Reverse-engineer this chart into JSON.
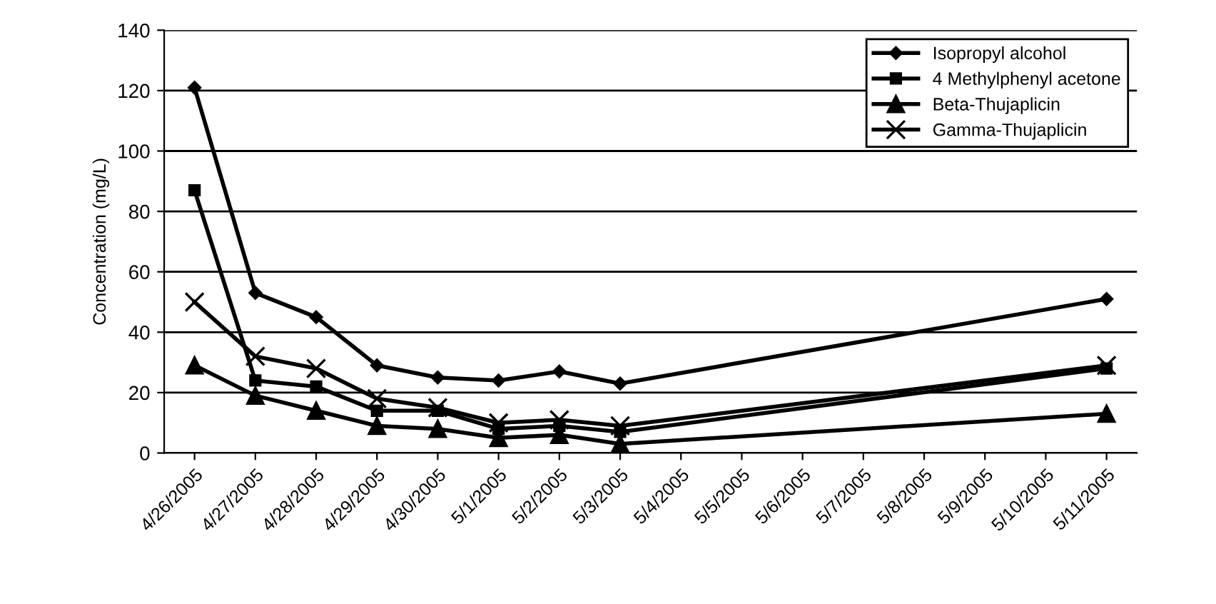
{
  "chart_data": {
    "type": "line",
    "ylabel": "Concentration (mg/L)",
    "x": [
      "2005-04-26",
      "2005-04-27",
      "2005-04-28",
      "2005-04-29",
      "2005-04-30",
      "2005-05-01",
      "2005-05-02",
      "2005-05-03",
      "2005-05-11"
    ],
    "series": [
      {
        "name": "Isopropyl alcohol",
        "color": "#000000",
        "marker": "diamond",
        "values": [
          121,
          53,
          45,
          29,
          25,
          24,
          27,
          23,
          51
        ]
      },
      {
        "name": "4 Methylphenyl acetone",
        "color": "#000000",
        "marker": "square",
        "values": [
          87,
          24,
          22,
          14,
          14,
          8,
          9,
          7,
          28
        ]
      },
      {
        "name": "Beta-Thujaplicin",
        "color": "#000000",
        "marker": "triangle",
        "values": [
          29,
          19,
          14,
          9,
          8,
          5,
          6,
          3,
          13
        ]
      },
      {
        "name": "Gamma-Thujaplicin",
        "color": "#000000",
        "marker": "cross",
        "values": [
          50,
          32,
          28,
          18,
          15,
          10,
          11,
          9,
          29
        ]
      }
    ],
    "xlim": [
      "2005-04-25T12:00",
      "2005-05-11T12:00"
    ],
    "xticks": [
      {
        "value": "2005-04-26",
        "label": "4/26/2005"
      },
      {
        "value": "2005-04-27",
        "label": "4/27/2005"
      },
      {
        "value": "2005-04-28",
        "label": "4/28/2005"
      },
      {
        "value": "2005-04-29",
        "label": "4/29/2005"
      },
      {
        "value": "2005-04-30",
        "label": "4/30/2005"
      },
      {
        "value": "2005-05-01",
        "label": "5/1/2005"
      },
      {
        "value": "2005-05-02",
        "label": "5/2/2005"
      },
      {
        "value": "2005-05-03",
        "label": "5/3/2005"
      },
      {
        "value": "2005-05-04",
        "label": "5/4/2005"
      },
      {
        "value": "2005-05-05",
        "label": "5/5/2005"
      },
      {
        "value": "2005-05-06",
        "label": "5/6/2005"
      },
      {
        "value": "2005-05-07",
        "label": "5/7/2005"
      },
      {
        "value": "2005-05-08",
        "label": "5/8/2005"
      },
      {
        "value": "2005-05-09",
        "label": "5/9/2005"
      },
      {
        "value": "2005-05-10",
        "label": "5/10/2005"
      },
      {
        "value": "2005-05-11",
        "label": "5/11/2005"
      }
    ],
    "ylim": [
      0,
      140
    ],
    "yticks": [
      0,
      20,
      40,
      60,
      80,
      100,
      120,
      140
    ],
    "grid": "y",
    "legend": "top right",
    "line_style": "solid"
  }
}
